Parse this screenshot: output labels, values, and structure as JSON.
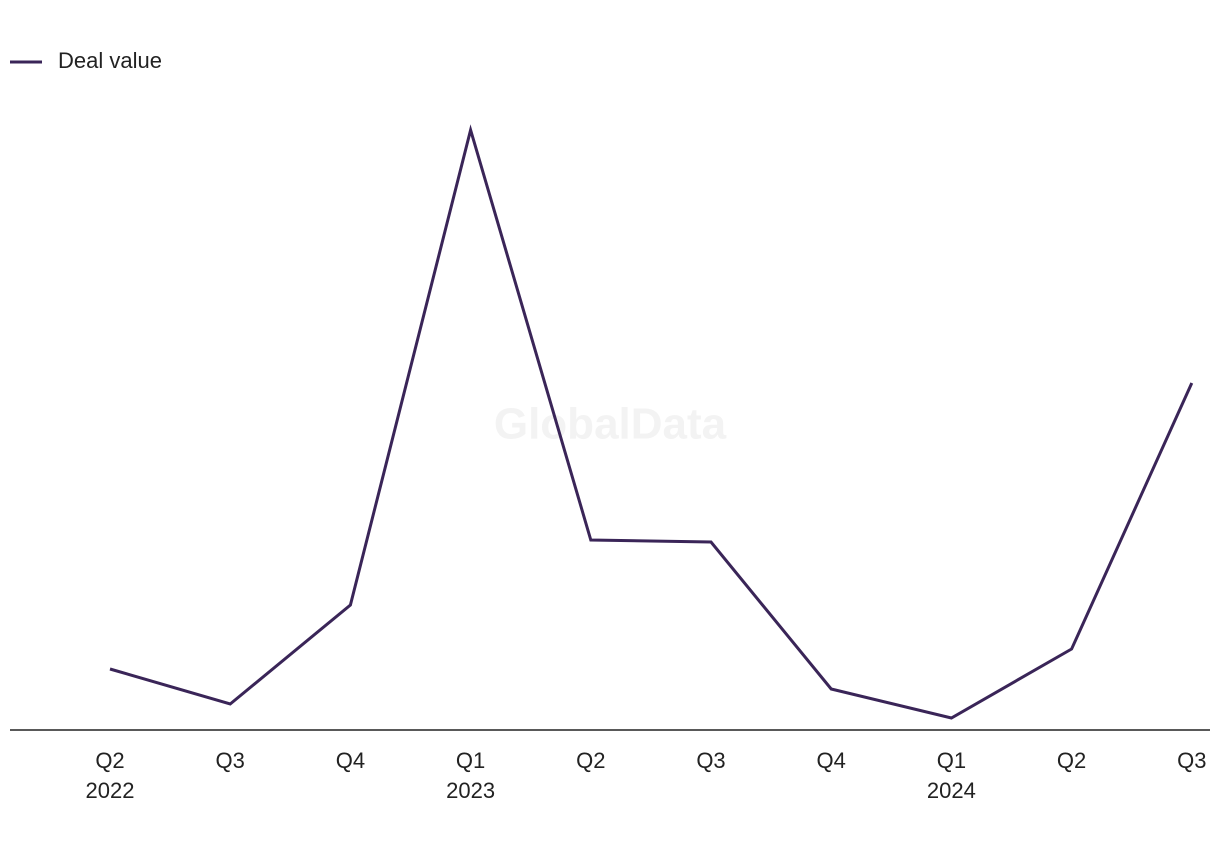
{
  "chart_data": {
    "type": "line",
    "watermark": "GlobalData",
    "categories": [
      "Q2",
      "Q3",
      "Q4",
      "Q1",
      "Q2",
      "Q3",
      "Q4",
      "Q1",
      "Q2",
      "Q3"
    ],
    "category_years": [
      "2022",
      null,
      null,
      "2023",
      null,
      null,
      null,
      "2024",
      null,
      null
    ],
    "series": [
      {
        "name": "Deal value",
        "color": "#3a2558",
        "values": [
          61,
          26,
          125,
          600,
          190,
          188,
          41,
          12,
          81,
          347
        ]
      }
    ],
    "ylim": [
      0,
      600
    ],
    "legend": "top-left"
  }
}
